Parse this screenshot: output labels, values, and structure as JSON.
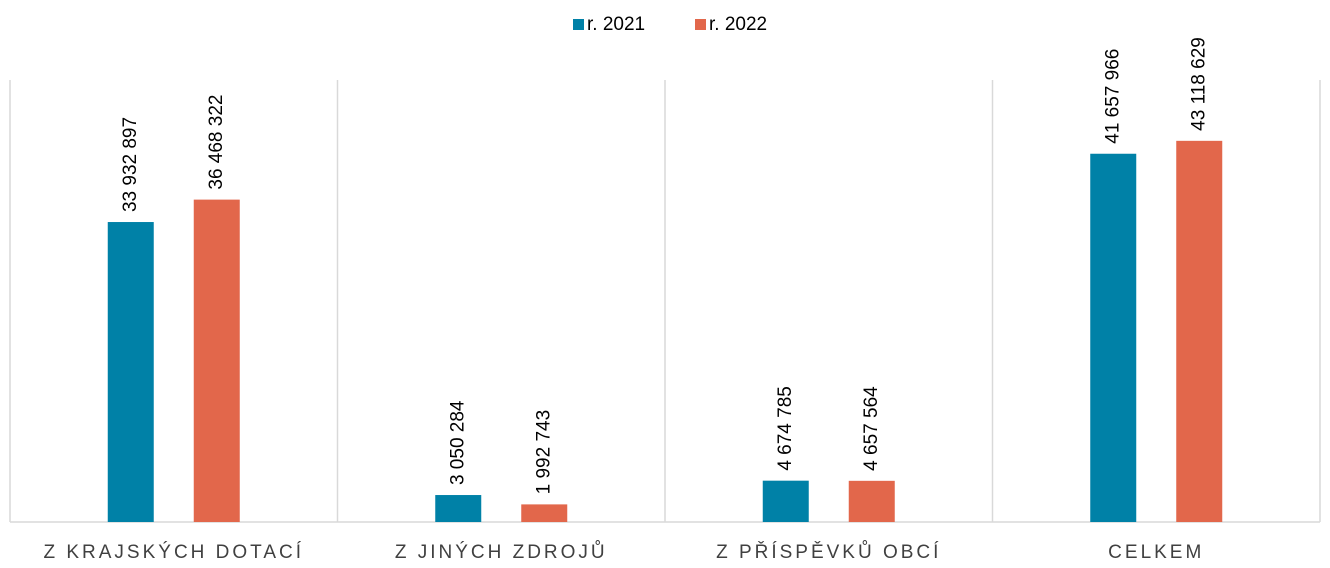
{
  "chart_data": {
    "type": "bar",
    "categories": [
      "Z KRAJSKÝCH DOTACÍ",
      "Z JINÝCH ZDROJŮ",
      "Z PŘÍSPĚVKŮ OBCÍ",
      "CELKEM"
    ],
    "series": [
      {
        "name": "r. 2021",
        "color": "#0081a7",
        "values": [
          33932897,
          3050284,
          4674785,
          41657966
        ],
        "value_labels": [
          "33 932 897",
          "3 050 284",
          "4 674 785",
          "41 657 966"
        ]
      },
      {
        "name": "r. 2022",
        "color": "#e2674b",
        "values": [
          36468322,
          1992743,
          4657564,
          43118629
        ],
        "value_labels": [
          "36 468 322",
          "1 992 743",
          "4 657 564",
          "43 118 629"
        ]
      }
    ],
    "ylim": [
      0,
      50000000
    ],
    "legend": "top"
  }
}
